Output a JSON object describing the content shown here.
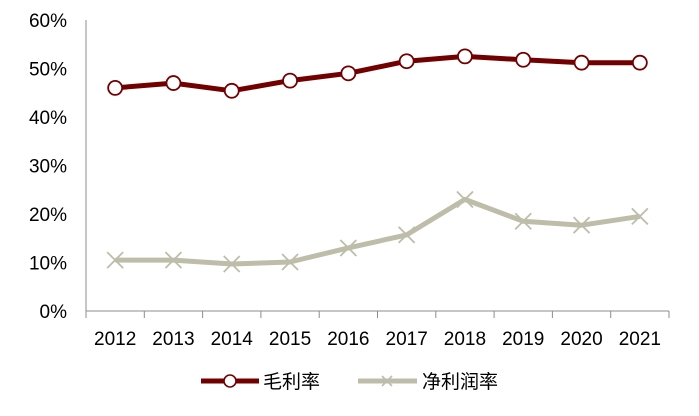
{
  "chart_data": {
    "type": "line",
    "title": "",
    "xlabel": "",
    "ylabel": "",
    "categories": [
      "2012",
      "2013",
      "2014",
      "2015",
      "2016",
      "2017",
      "2018",
      "2019",
      "2020",
      "2021"
    ],
    "ylim": [
      0,
      60
    ],
    "yticks": [
      "0%",
      "10%",
      "20%",
      "30%",
      "40%",
      "50%",
      "60%"
    ],
    "grid": false,
    "legend_position": "bottom",
    "series": [
      {
        "name": "毛利率",
        "color": "#720000",
        "marker": "circle-open",
        "values": [
          46.0,
          47.0,
          45.4,
          47.5,
          49.0,
          51.5,
          52.5,
          51.8,
          51.2,
          51.2
        ]
      },
      {
        "name": "净利润率",
        "color": "#BEBDAA",
        "marker": "x",
        "values": [
          10.5,
          10.5,
          9.7,
          10.1,
          13.0,
          15.7,
          23.0,
          18.5,
          17.7,
          19.5
        ]
      }
    ]
  },
  "legend": {
    "items": [
      {
        "label": "毛利率"
      },
      {
        "label": "净利润率"
      }
    ]
  }
}
